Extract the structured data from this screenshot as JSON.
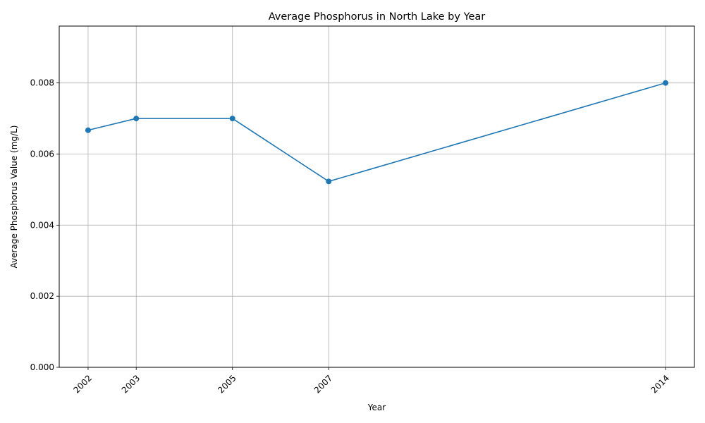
{
  "chart_data": {
    "type": "line",
    "title": "Average Phosphorus in North Lake by Year",
    "xlabel": "Year",
    "ylabel": "Average Phosphorus Value (mg/L)",
    "x": [
      2002,
      2003,
      2005,
      2007,
      2014
    ],
    "x_tick_labels": [
      "2002",
      "2003",
      "2005",
      "2007",
      "2014"
    ],
    "xlim": [
      2001.4,
      2014.6
    ],
    "ylim": [
      0,
      0.0096
    ],
    "y_ticks": [
      0,
      0.002,
      0.004,
      0.006,
      0.008
    ],
    "y_tick_labels": [
      "0.000",
      "0.002",
      "0.004",
      "0.006",
      "0.008"
    ],
    "series": [
      {
        "values": [
          0.00667,
          0.007,
          0.007,
          0.00523,
          0.008
        ],
        "color": "#1f77b4"
      }
    ],
    "grid": true,
    "marker": "circle"
  }
}
